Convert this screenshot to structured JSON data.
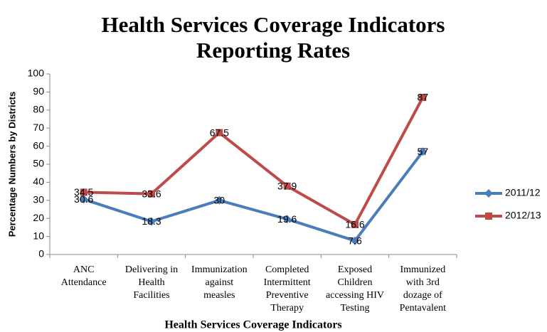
{
  "chart_data": {
    "type": "line",
    "title": "Health Services Coverage Indicators",
    "subtitle": "Reporting Rates",
    "x_label": "Health Services Coverage Indicators",
    "y_label": "Percentage Numbers by Districts",
    "categories": [
      "ANC Attendance",
      "Delivering in Health Facilities",
      "Immunization against measles",
      "Completed Intermittent Preventive Therapy",
      "Exposed Children accessing HIV Testing",
      "Immunized with 3rd dozage of Pentavalent"
    ],
    "series": [
      {
        "name": "2011/12",
        "color": "#4a7ebb",
        "marker": "diamond",
        "values": [
          30.6,
          18.3,
          30,
          19.6,
          7.6,
          57
        ]
      },
      {
        "name": "2012/13",
        "color": "#be4b48",
        "marker": "square",
        "values": [
          34.5,
          33.6,
          67.5,
          37.9,
          16.6,
          87
        ]
      }
    ],
    "ylim": [
      0,
      100
    ],
    "yticks": [
      0,
      10,
      20,
      30,
      40,
      50,
      60,
      70,
      80,
      90,
      100
    ],
    "legend": "right",
    "grid": false
  }
}
